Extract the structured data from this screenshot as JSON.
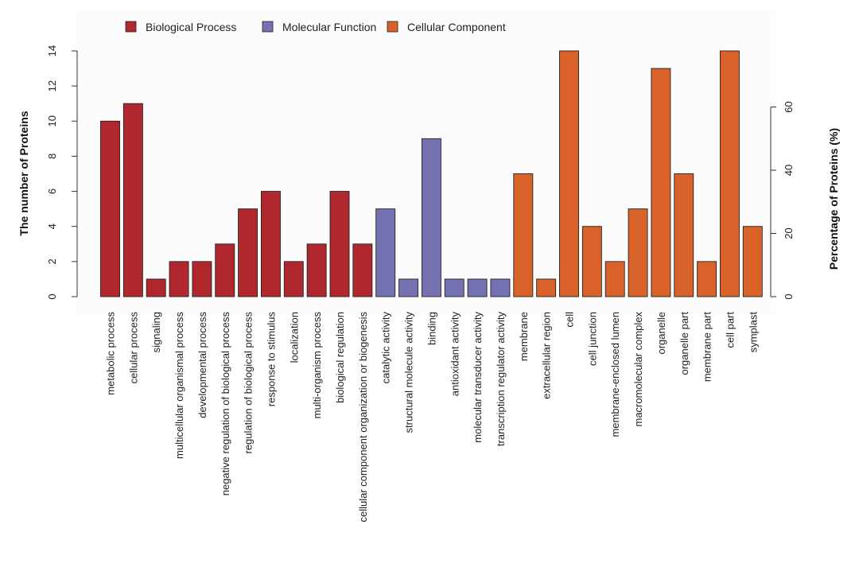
{
  "chart_data": {
    "type": "bar",
    "title": "",
    "ylabel": "The number of Proteins",
    "ylabel_right": "Percentage of Proteins (%)",
    "ylim": [
      0,
      14
    ],
    "yticks": [
      0,
      2,
      4,
      6,
      8,
      10,
      12,
      14
    ],
    "y2lim": [
      0,
      80
    ],
    "y2ticks": [
      0,
      20,
      40,
      60
    ],
    "legend_position": "top",
    "groups": [
      {
        "name": "Biological Process",
        "color": "#b0282e"
      },
      {
        "name": "Molecular Function",
        "color": "#7472b0"
      },
      {
        "name": "Cellular Component",
        "color": "#d9612a"
      }
    ],
    "categories": [
      "metabolic process",
      "cellular process",
      "signaling",
      "multicellular organismal process",
      "developmental process",
      "negative regulation of biological process",
      "regulation of biological process",
      "response to stimulus",
      "localization",
      "multi-organism process",
      "biological regulation",
      "cellular component organization or biogenesis",
      "catalytic activity",
      "structural molecule activity",
      "binding",
      "antioxidant activity",
      "molecular transducer activity",
      "transcription regulator activity",
      "membrane",
      "extracellular region",
      "cell",
      "cell junction",
      "membrane-enclosed lumen",
      "macromolecular complex",
      "organelle",
      "organelle part",
      "membrane part",
      "cell part",
      "symplast"
    ],
    "values": [
      10,
      11,
      1,
      2,
      2,
      3,
      5,
      6,
      2,
      3,
      6,
      3,
      5,
      1,
      9,
      1,
      1,
      1,
      7,
      1,
      14,
      4,
      2,
      5,
      13,
      7,
      2,
      14,
      4
    ],
    "group_index": [
      0,
      0,
      0,
      0,
      0,
      0,
      0,
      0,
      0,
      0,
      0,
      0,
      1,
      1,
      1,
      1,
      1,
      1,
      2,
      2,
      2,
      2,
      2,
      2,
      2,
      2,
      2,
      2,
      2
    ]
  }
}
